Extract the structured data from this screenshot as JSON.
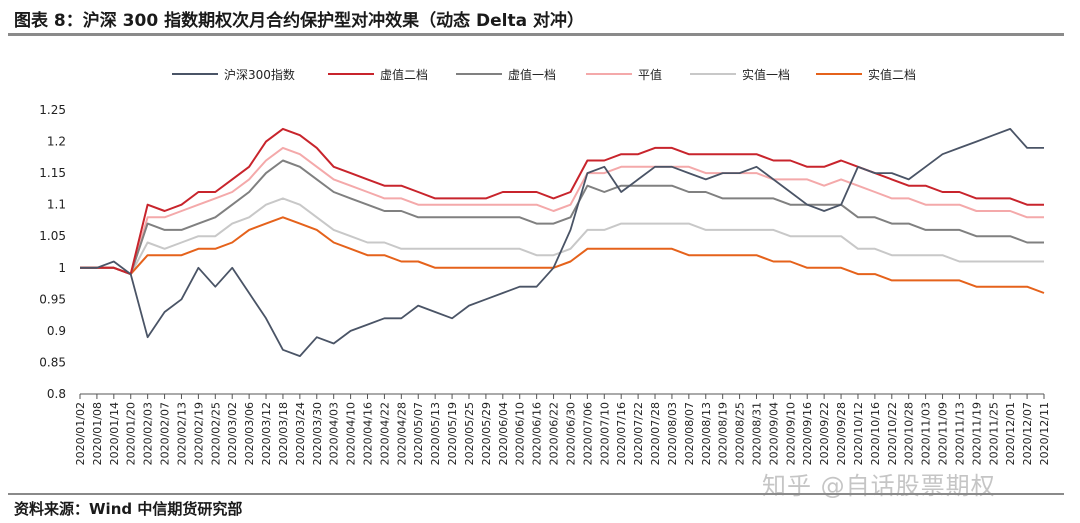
{
  "title": "图表 8：沪深 300 指数期权次月合约保护型对冲效果（动态 Delta 对冲）",
  "source": "资料来源：Wind 中信期货研究部",
  "watermark": "知乎 @自话股票期权",
  "chart_data": {
    "type": "line",
    "title": "图表 8：沪深 300 指数期权次月合约保护型对冲效果（动态 Delta 对冲）",
    "xlabel": "",
    "ylabel": "",
    "ylim": [
      0.8,
      1.25
    ],
    "yticks": [
      0.8,
      0.85,
      0.9,
      0.95,
      1,
      1.05,
      1.1,
      1.15,
      1.2,
      1.25
    ],
    "ytick_labels": [
      "0.8",
      "0.85",
      "0.9",
      "0.95",
      "1",
      "1.05",
      "1.1",
      "1.15",
      "1.2",
      "1.25"
    ],
    "grid": false,
    "legend_position": "top",
    "x": [
      "2020/01/02",
      "2020/01/08",
      "2020/01/14",
      "2020/01/20",
      "2020/02/03",
      "2020/02/07",
      "2020/02/13",
      "2020/02/19",
      "2020/02/25",
      "2020/03/02",
      "2020/03/06",
      "2020/03/12",
      "2020/03/18",
      "2020/03/24",
      "2020/03/30",
      "2020/04/03",
      "2020/04/10",
      "2020/04/16",
      "2020/04/22",
      "2020/04/28",
      "2020/05/07",
      "2020/05/13",
      "2020/05/19",
      "2020/05/25",
      "2020/05/29",
      "2020/06/04",
      "2020/06/10",
      "2020/06/16",
      "2020/06/22",
      "2020/06/30",
      "2020/07/06",
      "2020/07/10",
      "2020/07/16",
      "2020/07/22",
      "2020/07/28",
      "2020/08/03",
      "2020/08/07",
      "2020/08/13",
      "2020/08/19",
      "2020/08/25",
      "2020/08/31",
      "2020/09/04",
      "2020/09/10",
      "2020/09/16",
      "2020/09/22",
      "2020/09/28",
      "2020/10/12",
      "2020/10/16",
      "2020/10/22",
      "2020/10/28",
      "2020/11/03",
      "2020/11/09",
      "2020/11/13",
      "2020/11/19",
      "2020/11/25",
      "2020/12/01",
      "2020/12/07",
      "2020/12/11"
    ],
    "series": [
      {
        "name": "沪深300指数",
        "color": "#4a5466",
        "values": [
          1.0,
          1.0,
          1.01,
          0.99,
          0.89,
          0.93,
          0.95,
          1.0,
          0.97,
          1.0,
          0.96,
          0.92,
          0.87,
          0.86,
          0.89,
          0.88,
          0.9,
          0.91,
          0.92,
          0.92,
          0.94,
          0.93,
          0.92,
          0.94,
          0.95,
          0.96,
          0.97,
          0.97,
          1.0,
          1.06,
          1.15,
          1.16,
          1.12,
          1.14,
          1.16,
          1.16,
          1.15,
          1.14,
          1.15,
          1.15,
          1.16,
          1.14,
          1.12,
          1.1,
          1.09,
          1.1,
          1.16,
          1.15,
          1.15,
          1.14,
          1.16,
          1.18,
          1.19,
          1.2,
          1.21,
          1.22,
          1.19,
          1.19
        ]
      },
      {
        "name": "虚值二档",
        "color": "#c8242c",
        "values": [
          1.0,
          1.0,
          1.0,
          0.99,
          1.1,
          1.09,
          1.1,
          1.12,
          1.12,
          1.14,
          1.16,
          1.2,
          1.22,
          1.21,
          1.19,
          1.16,
          1.15,
          1.14,
          1.13,
          1.13,
          1.12,
          1.11,
          1.11,
          1.11,
          1.11,
          1.12,
          1.12,
          1.12,
          1.11,
          1.12,
          1.17,
          1.17,
          1.18,
          1.18,
          1.19,
          1.19,
          1.18,
          1.18,
          1.18,
          1.18,
          1.18,
          1.17,
          1.17,
          1.16,
          1.16,
          1.17,
          1.16,
          1.15,
          1.14,
          1.13,
          1.13,
          1.12,
          1.12,
          1.11,
          1.11,
          1.11,
          1.1,
          1.1
        ]
      },
      {
        "name": "虚值一档",
        "color": "#808080",
        "values": [
          1.0,
          1.0,
          1.0,
          0.99,
          1.07,
          1.06,
          1.06,
          1.07,
          1.08,
          1.1,
          1.12,
          1.15,
          1.17,
          1.16,
          1.14,
          1.12,
          1.11,
          1.1,
          1.09,
          1.09,
          1.08,
          1.08,
          1.08,
          1.08,
          1.08,
          1.08,
          1.08,
          1.07,
          1.07,
          1.08,
          1.13,
          1.12,
          1.13,
          1.13,
          1.13,
          1.13,
          1.12,
          1.12,
          1.11,
          1.11,
          1.11,
          1.11,
          1.1,
          1.1,
          1.1,
          1.1,
          1.08,
          1.08,
          1.07,
          1.07,
          1.06,
          1.06,
          1.06,
          1.05,
          1.05,
          1.05,
          1.04,
          1.04
        ]
      },
      {
        "name": "平值",
        "color": "#f4a9aa",
        "values": [
          1.0,
          1.0,
          1.0,
          0.99,
          1.08,
          1.08,
          1.09,
          1.1,
          1.11,
          1.12,
          1.14,
          1.17,
          1.19,
          1.18,
          1.16,
          1.14,
          1.13,
          1.12,
          1.11,
          1.11,
          1.1,
          1.1,
          1.1,
          1.1,
          1.1,
          1.1,
          1.1,
          1.1,
          1.09,
          1.1,
          1.15,
          1.15,
          1.16,
          1.16,
          1.16,
          1.16,
          1.16,
          1.15,
          1.15,
          1.15,
          1.15,
          1.14,
          1.14,
          1.14,
          1.13,
          1.14,
          1.13,
          1.12,
          1.11,
          1.11,
          1.1,
          1.1,
          1.1,
          1.09,
          1.09,
          1.09,
          1.08,
          1.08
        ]
      },
      {
        "name": "实值一档",
        "color": "#c8c8c8",
        "values": [
          1.0,
          1.0,
          1.0,
          0.99,
          1.04,
          1.03,
          1.04,
          1.05,
          1.05,
          1.07,
          1.08,
          1.1,
          1.11,
          1.1,
          1.08,
          1.06,
          1.05,
          1.04,
          1.04,
          1.03,
          1.03,
          1.03,
          1.03,
          1.03,
          1.03,
          1.03,
          1.03,
          1.02,
          1.02,
          1.03,
          1.06,
          1.06,
          1.07,
          1.07,
          1.07,
          1.07,
          1.07,
          1.06,
          1.06,
          1.06,
          1.06,
          1.06,
          1.05,
          1.05,
          1.05,
          1.05,
          1.03,
          1.03,
          1.02,
          1.02,
          1.02,
          1.02,
          1.01,
          1.01,
          1.01,
          1.01,
          1.01,
          1.01
        ]
      },
      {
        "name": "实值二档",
        "color": "#e5621b",
        "values": [
          1.0,
          1.0,
          1.0,
          0.99,
          1.02,
          1.02,
          1.02,
          1.03,
          1.03,
          1.04,
          1.06,
          1.07,
          1.08,
          1.07,
          1.06,
          1.04,
          1.03,
          1.02,
          1.02,
          1.01,
          1.01,
          1.0,
          1.0,
          1.0,
          1.0,
          1.0,
          1.0,
          1.0,
          1.0,
          1.01,
          1.03,
          1.03,
          1.03,
          1.03,
          1.03,
          1.03,
          1.02,
          1.02,
          1.02,
          1.02,
          1.02,
          1.01,
          1.01,
          1.0,
          1.0,
          1.0,
          0.99,
          0.99,
          0.98,
          0.98,
          0.98,
          0.98,
          0.98,
          0.97,
          0.97,
          0.97,
          0.97,
          0.96
        ]
      }
    ]
  }
}
